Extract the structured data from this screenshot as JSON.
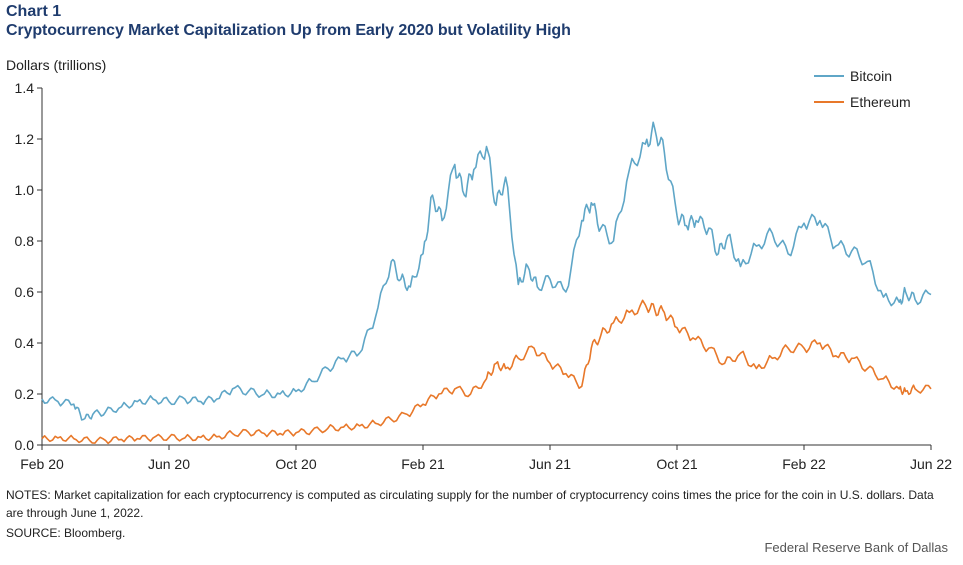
{
  "header": {
    "kicker": "Chart 1",
    "title": "Cryptocurrency Market Capitalization Up from Early 2020 but Volatility High"
  },
  "chart_data": {
    "type": "line",
    "title": "Cryptocurrency Market Capitalization Up from Early 2020 but Volatility High",
    "ylabel": "Dollars (trillions)",
    "xlabel": "",
    "ylim": [
      0,
      1.4
    ],
    "yticks": [
      0.0,
      0.2,
      0.4,
      0.6,
      0.8,
      1.0,
      1.2,
      1.4
    ],
    "ytick_labels": [
      "0.0",
      "0.2",
      "0.4",
      "0.6",
      "0.8",
      "1.0",
      "1.2",
      "1.4"
    ],
    "xlim": [
      0,
      28
    ],
    "xticks": [
      0,
      4,
      8,
      12,
      16,
      20,
      24,
      28
    ],
    "xtick_labels": [
      "Feb 20",
      "Jun 20",
      "Oct 20",
      "Feb 21",
      "Jun 21",
      "Oct 21",
      "Feb 22",
      "Jun 22"
    ],
    "x_units": "months since Feb 1, 2020",
    "legend_position": "top-right",
    "series": [
      {
        "name": "Bitcoin",
        "color": "#5fa6c7",
        "x": [
          0,
          0.5,
          1,
          1.3,
          1.6,
          2,
          2.5,
          3,
          3.5,
          4,
          4.5,
          5,
          5.5,
          6,
          6.5,
          7,
          7.5,
          8,
          8.5,
          9,
          9.5,
          10,
          10.5,
          11,
          11.3,
          11.6,
          12,
          12.3,
          12.6,
          13,
          13.3,
          13.6,
          14,
          14.3,
          14.6,
          15,
          15.3,
          15.6,
          16,
          16.5,
          17,
          17.3,
          17.6,
          18,
          18.5,
          19,
          19.3,
          19.6,
          20,
          20.3,
          20.6,
          21,
          21.3,
          21.6,
          22,
          22.5,
          23,
          23.5,
          24,
          24.5,
          25,
          25.5,
          26,
          26.5,
          27,
          27.2,
          27.5,
          28
        ],
        "values": [
          0.18,
          0.17,
          0.16,
          0.1,
          0.12,
          0.13,
          0.15,
          0.17,
          0.18,
          0.17,
          0.18,
          0.17,
          0.18,
          0.22,
          0.21,
          0.2,
          0.2,
          0.21,
          0.25,
          0.3,
          0.34,
          0.36,
          0.5,
          0.72,
          0.65,
          0.62,
          0.75,
          0.98,
          0.88,
          1.1,
          0.98,
          1.08,
          1.17,
          0.94,
          1.05,
          0.63,
          0.7,
          0.62,
          0.65,
          0.6,
          0.88,
          0.95,
          0.85,
          0.8,
          1.08,
          1.18,
          1.24,
          1.15,
          0.9,
          0.86,
          0.88,
          0.85,
          0.75,
          0.82,
          0.7,
          0.78,
          0.83,
          0.75,
          0.87,
          0.88,
          0.78,
          0.76,
          0.72,
          0.58,
          0.56,
          0.6,
          0.57,
          0.59
        ]
      },
      {
        "name": "Ethereum",
        "color": "#e8782a",
        "x": [
          0,
          0.5,
          1,
          1.5,
          2,
          2.5,
          3,
          3.5,
          4,
          4.5,
          5,
          5.5,
          6,
          6.5,
          7,
          7.5,
          8,
          8.5,
          9,
          9.5,
          10,
          10.5,
          11,
          11.5,
          12,
          12.5,
          13,
          13.5,
          14,
          14.3,
          14.6,
          15,
          15.5,
          16,
          16.5,
          17,
          17.3,
          17.6,
          18,
          18.5,
          19,
          19.3,
          19.6,
          20,
          20.5,
          21,
          21.5,
          22,
          22.5,
          23,
          23.5,
          24,
          24.5,
          25,
          25.5,
          26,
          26.5,
          27,
          27.2,
          27.5,
          28
        ],
        "values": [
          0.025,
          0.028,
          0.025,
          0.018,
          0.018,
          0.022,
          0.025,
          0.028,
          0.03,
          0.028,
          0.03,
          0.032,
          0.045,
          0.05,
          0.045,
          0.045,
          0.048,
          0.055,
          0.065,
          0.07,
          0.075,
          0.085,
          0.1,
          0.12,
          0.16,
          0.2,
          0.22,
          0.2,
          0.26,
          0.32,
          0.3,
          0.34,
          0.38,
          0.32,
          0.28,
          0.23,
          0.38,
          0.43,
          0.48,
          0.52,
          0.55,
          0.53,
          0.52,
          0.46,
          0.42,
          0.38,
          0.32,
          0.36,
          0.3,
          0.34,
          0.38,
          0.38,
          0.4,
          0.35,
          0.34,
          0.3,
          0.26,
          0.22,
          0.21,
          0.22,
          0.22
        ]
      }
    ]
  },
  "notes": {
    "text": "NOTES: Market capitalization for each cryptocurrency is computed as circulating supply for the number of cryptocurrency coins times the price for the coin in U.S. dollars. Data are through June 1, 2022."
  },
  "source": {
    "text": "SOURCE: Bloomberg."
  },
  "credit": {
    "text": "Federal Reserve Bank of Dallas"
  }
}
